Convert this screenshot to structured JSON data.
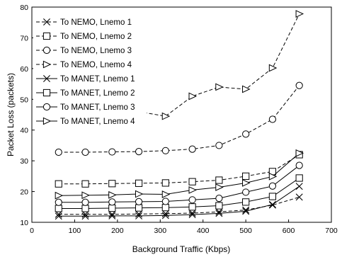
{
  "chart_data": {
    "type": "line",
    "title": "",
    "xlabel": "Background Traffic (Kbps)",
    "ylabel": "Packet Loss (packets)",
    "xlim": [
      0,
      700
    ],
    "ylim": [
      10,
      80
    ],
    "xticks": [
      0,
      100,
      200,
      300,
      400,
      500,
      600,
      700
    ],
    "yticks": [
      10,
      20,
      30,
      40,
      50,
      60,
      70,
      80
    ],
    "xtick_labels": [
      "0",
      "100",
      "200",
      "300",
      "400",
      "500",
      "600",
      "700"
    ],
    "ytick_labels": [
      "10",
      "20",
      "30",
      "40",
      "50",
      "60",
      "70",
      "80"
    ],
    "grid": false,
    "legend_position": "top-left",
    "x": [
      62.5,
      125,
      187.5,
      250,
      312.5,
      375,
      437.5,
      500,
      562.5,
      625
    ],
    "series": [
      {
        "name": "To NEMO, Lnemo 1",
        "marker": "x",
        "dash": true,
        "values": [
          12.6,
          12.6,
          12.6,
          12.7,
          12.8,
          13.0,
          13.4,
          14.0,
          15.6,
          18.2
        ]
      },
      {
        "name": "To NEMO, Lnemo 2",
        "marker": "square",
        "dash": true,
        "values": [
          22.5,
          22.5,
          22.6,
          22.7,
          22.8,
          23.2,
          23.7,
          25.0,
          26.5,
          32.0
        ]
      },
      {
        "name": "To NEMO, Lnemo 3",
        "marker": "circle",
        "dash": true,
        "values": [
          32.8,
          32.8,
          32.9,
          33.0,
          33.3,
          33.8,
          35.0,
          38.7,
          43.5,
          54.5
        ]
      },
      {
        "name": "To NEMO, Lnemo 4",
        "marker": "triangle-right",
        "dash": true,
        "values": [
          46.0,
          46.0,
          46.1,
          46.0,
          44.5,
          51.0,
          54.0,
          53.3,
          60.2,
          77.8
        ]
      },
      {
        "name": "To MANET, Lnemo 1",
        "marker": "x",
        "dash": false,
        "values": [
          12.0,
          12.0,
          12.1,
          12.1,
          12.2,
          12.5,
          12.9,
          13.6,
          15.8,
          21.7
        ]
      },
      {
        "name": "To MANET, Lnemo 2",
        "marker": "square",
        "dash": false,
        "values": [
          14.5,
          14.5,
          14.6,
          14.7,
          14.8,
          15.0,
          15.4,
          16.6,
          18.4,
          24.4
        ]
      },
      {
        "name": "To MANET, Lnemo 3",
        "marker": "circle",
        "dash": false,
        "values": [
          16.5,
          16.5,
          16.6,
          16.7,
          16.8,
          17.3,
          17.8,
          19.8,
          21.8,
          28.5
        ]
      },
      {
        "name": "To MANET, Lnemo 4",
        "marker": "triangle-right",
        "dash": false,
        "values": [
          18.7,
          18.8,
          18.9,
          19.2,
          19.1,
          20.5,
          21.4,
          22.8,
          24.9,
          32.5
        ]
      }
    ]
  }
}
